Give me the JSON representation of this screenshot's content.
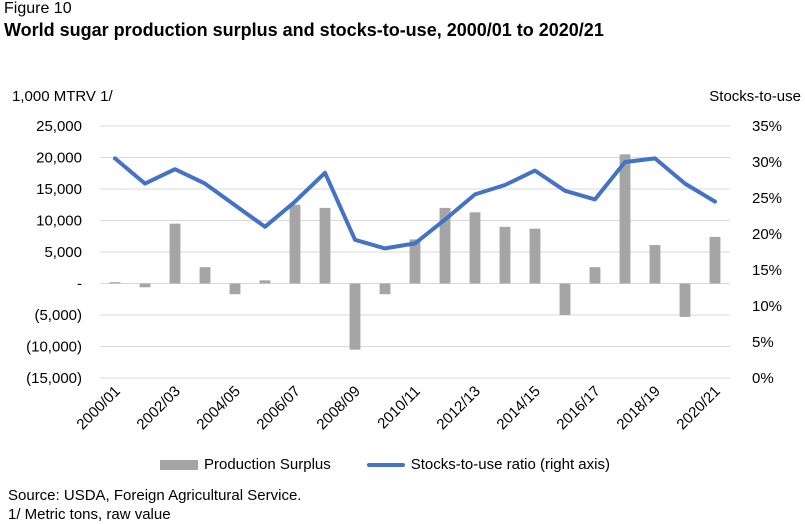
{
  "figure_label": "Figure 10",
  "title": "World sugar production surplus and stocks-to-use, 2000/01 to 2020/21",
  "ylabel_left": "1,000 MTRV 1/",
  "ylabel_right": "Stocks-to-use",
  "legend": {
    "bar_label": "Production Surplus",
    "line_label": "Stocks-to-use ratio (right axis)"
  },
  "source": "Source: USDA, Foreign Agricultural Service.",
  "footnote": "1/ Metric tons, raw value",
  "colors": {
    "bar": "#a5a5a5",
    "line": "#4472c4",
    "grid": "#d9d9d9"
  },
  "chart_data": {
    "type": "bar+line",
    "categories": [
      "2000/01",
      "2001/02",
      "2002/03",
      "2003/04",
      "2004/05",
      "2005/06",
      "2006/07",
      "2007/08",
      "2008/09",
      "2009/10",
      "2010/11",
      "2011/12",
      "2012/13",
      "2013/14",
      "2014/15",
      "2015/16",
      "2016/17",
      "2017/18",
      "2018/19",
      "2019/20",
      "2020/21"
    ],
    "x_tick_labels": [
      "2000/01",
      "2002/03",
      "2004/05",
      "2006/07",
      "2008/09",
      "2010/11",
      "2012/13",
      "2014/15",
      "2016/17",
      "2018/19",
      "2020/21"
    ],
    "series": [
      {
        "name": "Production Surplus",
        "type": "bar",
        "axis": "left",
        "values": [
          200,
          -600,
          9500,
          2600,
          -1700,
          500,
          12500,
          12000,
          -10500,
          -1700,
          7000,
          12000,
          11300,
          9000,
          8700,
          -5000,
          2600,
          20500,
          6100,
          -5300,
          7400
        ]
      },
      {
        "name": "Stocks-to-use ratio (right axis)",
        "type": "line",
        "axis": "right",
        "values": [
          30.5,
          27.0,
          29.0,
          27.0,
          24.0,
          21.0,
          24.5,
          28.5,
          19.2,
          18.0,
          18.7,
          22.0,
          25.5,
          26.8,
          28.8,
          26.0,
          24.8,
          30.0,
          30.5,
          27.0,
          24.5
        ]
      }
    ],
    "y_left": {
      "ylim": [
        -15000,
        25000
      ],
      "ticks": [
        -15000,
        -10000,
        -5000,
        0,
        5000,
        10000,
        15000,
        20000,
        25000
      ],
      "tick_labels": [
        "(15,000)",
        "(10,000)",
        "(5,000)",
        "-",
        "5,000",
        "10,000",
        "15,000",
        "20,000",
        "25,000"
      ]
    },
    "y_right": {
      "ylim": [
        0,
        35
      ],
      "ticks": [
        0,
        5,
        10,
        15,
        20,
        25,
        30,
        35
      ],
      "tick_labels": [
        "0%",
        "5%",
        "10%",
        "15%",
        "20%",
        "25%",
        "30%",
        "35%"
      ]
    },
    "grid": true,
    "legend_position": "bottom"
  }
}
